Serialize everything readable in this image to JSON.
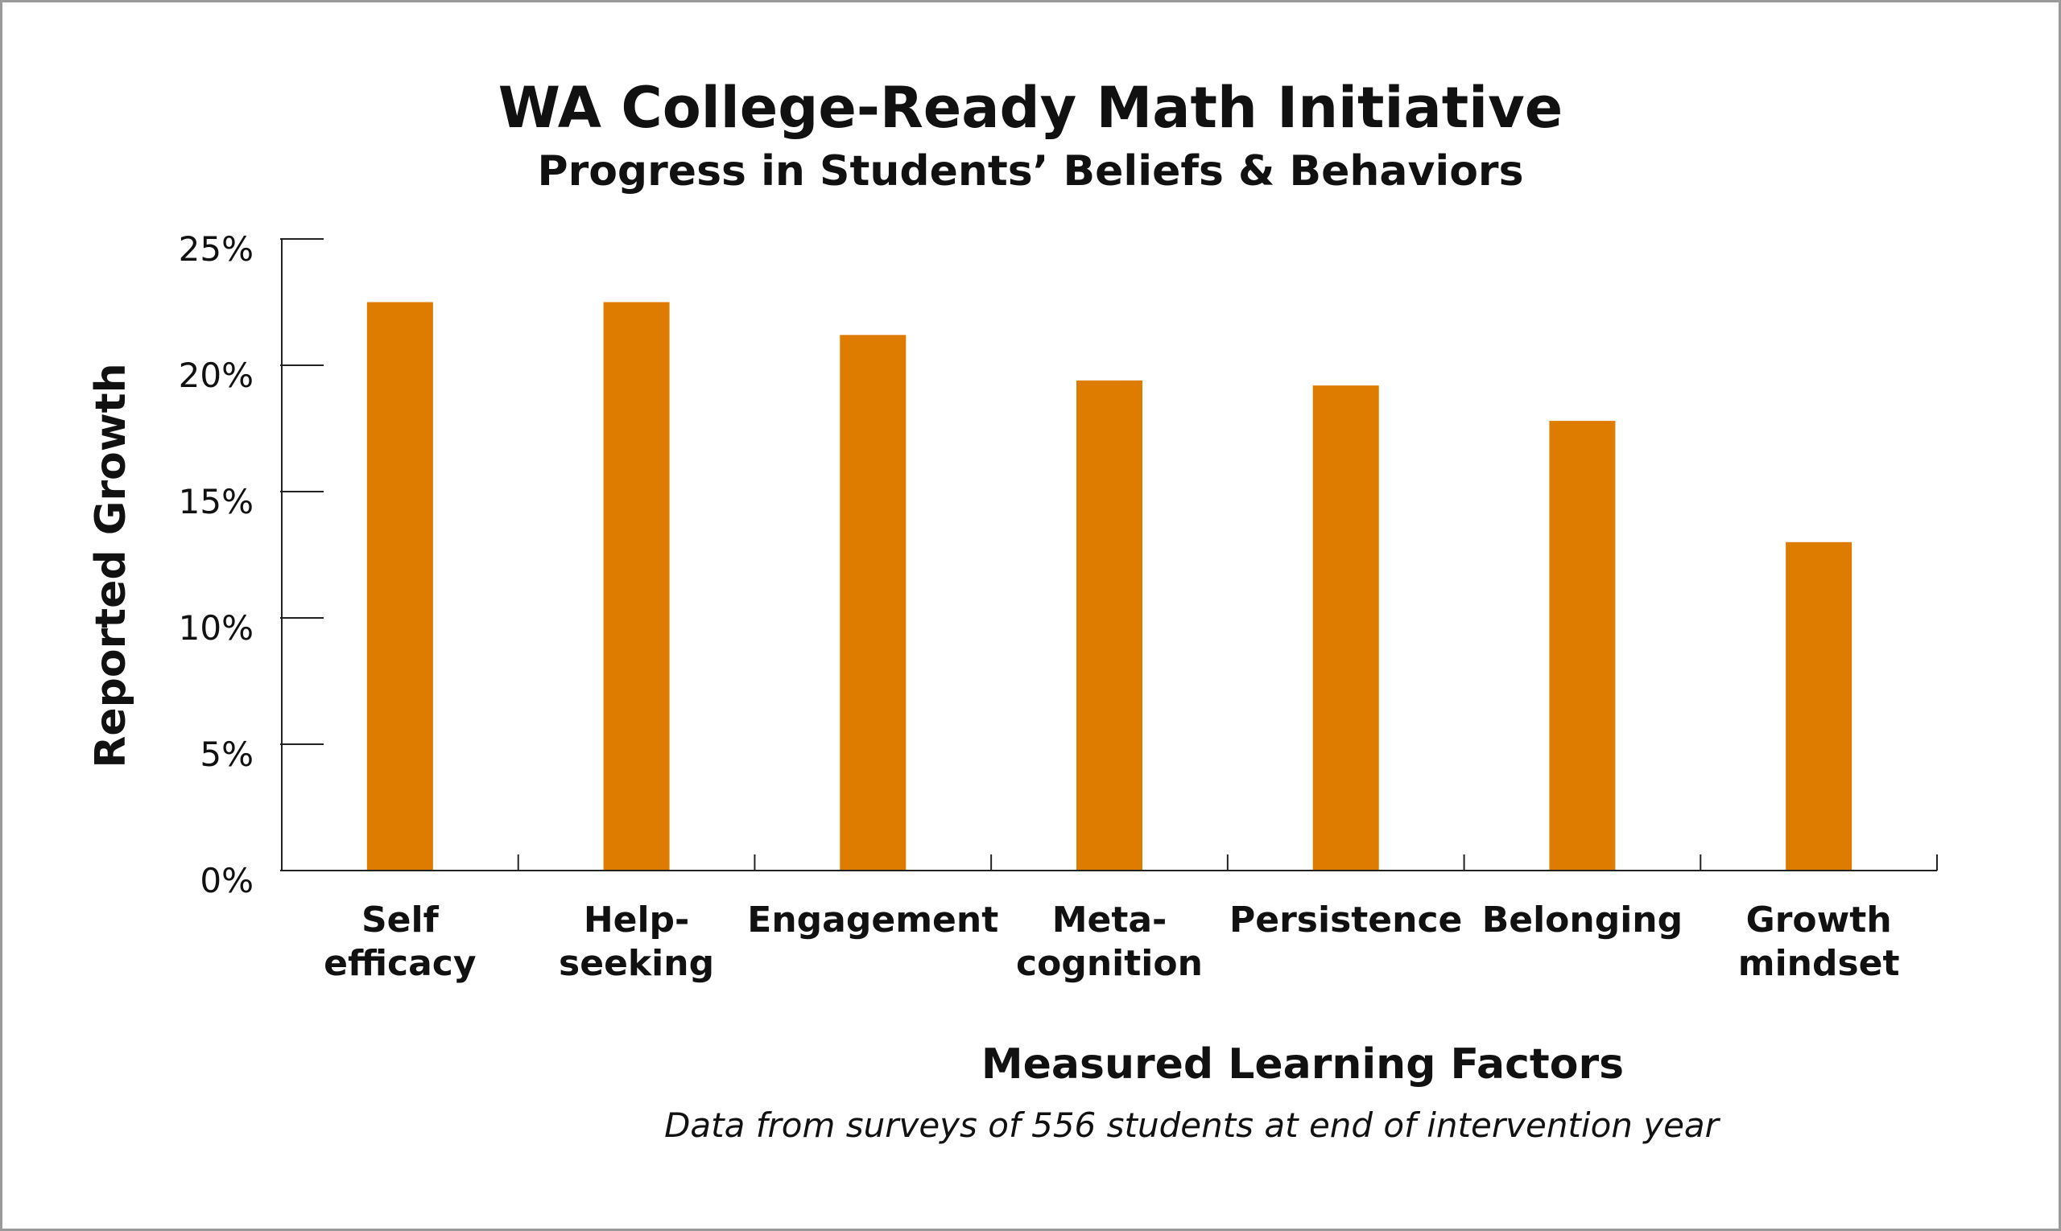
{
  "chart_data": {
    "type": "bar",
    "title": "WA College-Ready Math Initiative",
    "subtitle": "Progress in Students’ Beliefs & Behaviors",
    "xlabel": "Measured Learning Factors",
    "ylabel": "Reported Growth",
    "note": "Data from surveys of 556 students at end of intervention year",
    "categories": [
      [
        "Self",
        "efficacy"
      ],
      [
        "Help-",
        "seeking"
      ],
      [
        "Engagement"
      ],
      [
        "Meta-",
        "cognition"
      ],
      [
        "Persistence"
      ],
      [
        "Belonging"
      ],
      [
        "Growth",
        "mindset"
      ]
    ],
    "values": [
      22.5,
      22.5,
      21.2,
      19.4,
      19.2,
      17.8,
      13.0
    ],
    "ylim": [
      0,
      25
    ],
    "yticks": [
      "0%",
      "5%",
      "10%",
      "15%",
      "20%",
      "25%"
    ],
    "grid": false,
    "bar_color": "#de7c00"
  }
}
